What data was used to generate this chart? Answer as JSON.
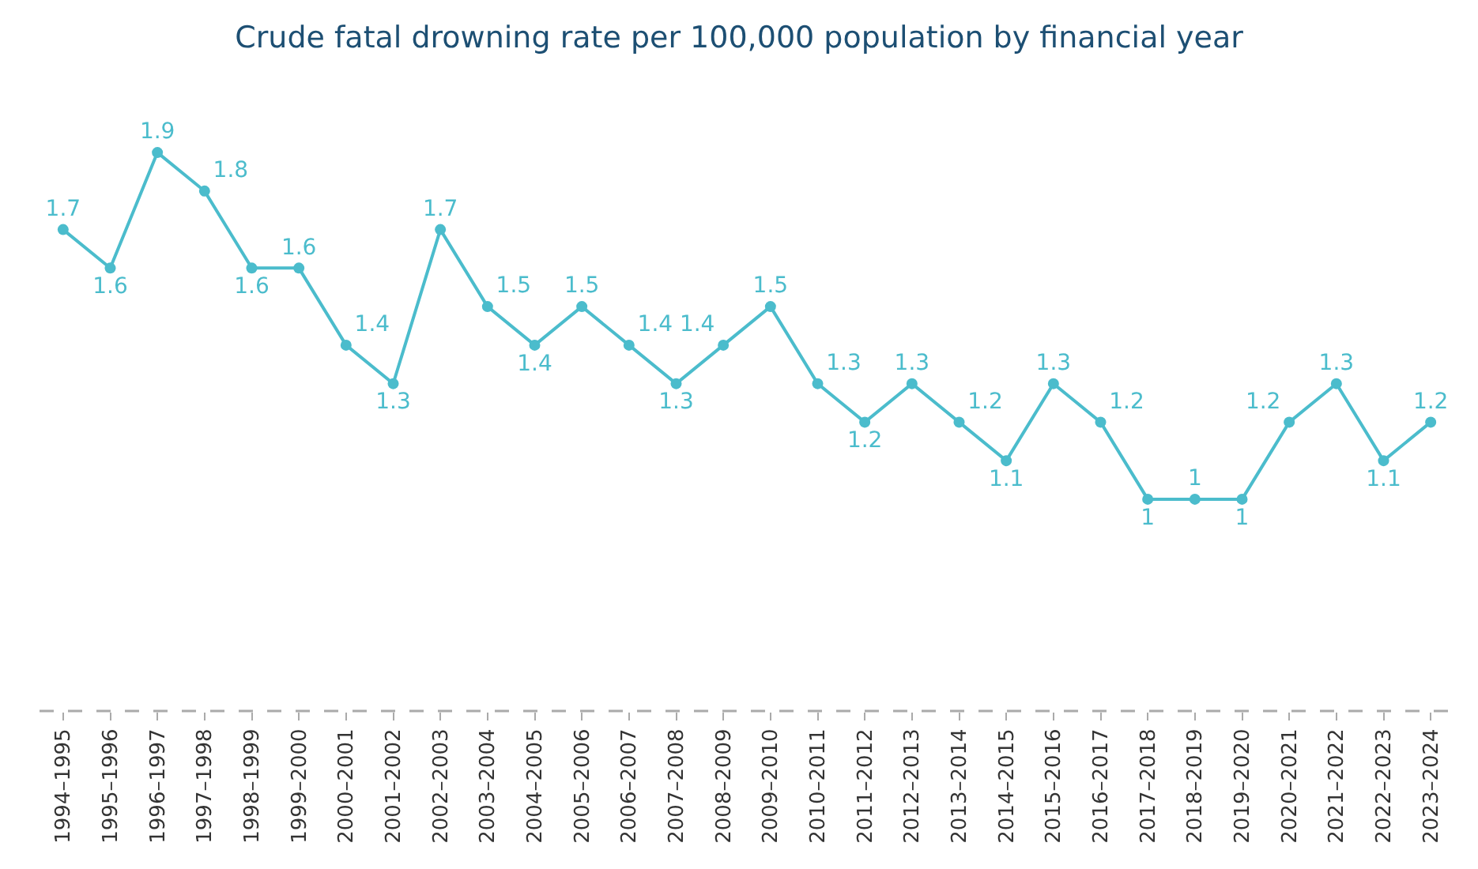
{
  "chart_data": {
    "type": "line",
    "title": "Crude fatal drowning rate per 100,000 population by financial year",
    "categories": [
      "1994–1995",
      "1995–1996",
      "1996–1997",
      "1997–1998",
      "1998–1999",
      "1999–2000",
      "2000–2001",
      "2001–2002",
      "2002–2003",
      "2003–2004",
      "2004–2005",
      "2005–2006",
      "2006–2007",
      "2007–2008",
      "2008–2009",
      "2009–2010",
      "2010–2011",
      "2011–2012",
      "2012–2013",
      "2013–2014",
      "2014–2015",
      "2015–2016",
      "2016–2017",
      "2017–2018",
      "2018–2019",
      "2019–2020",
      "2020–2021",
      "2021–2022",
      "2022–2023",
      "2023–2024"
    ],
    "series": [
      {
        "color": "#4bbccc",
        "values": [
          1.7,
          1.6,
          1.9,
          1.8,
          1.6,
          1.6,
          1.4,
          1.3,
          1.7,
          1.5,
          1.4,
          1.5,
          1.4,
          1.3,
          1.4,
          1.5,
          1.3,
          1.2,
          1.3,
          1.2,
          1.1,
          1.3,
          1.2,
          1,
          1,
          1,
          1.2,
          1.3,
          1.1,
          1.2
        ]
      }
    ],
    "data_labels": true,
    "marker": "circle",
    "line_style": "solid",
    "legend": false
  }
}
